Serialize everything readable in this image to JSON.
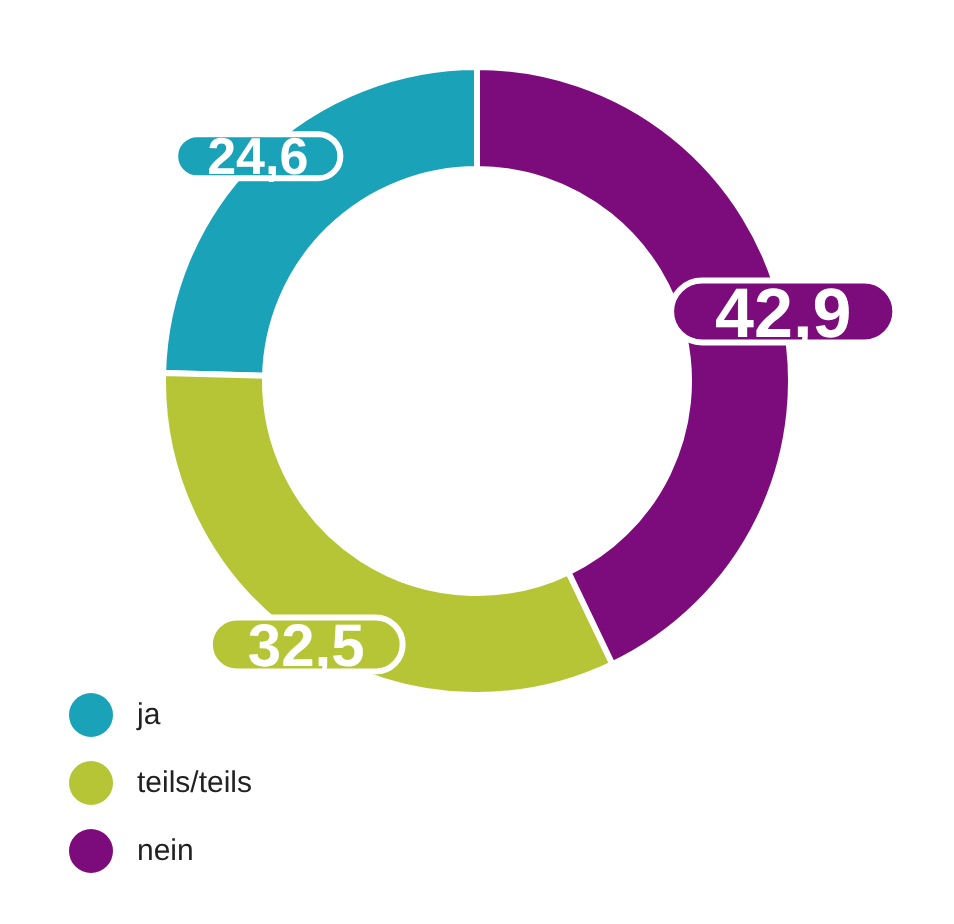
{
  "chart_data": {
    "type": "donut",
    "categories": [
      "ja",
      "teils/teils",
      "nein"
    ],
    "values": [
      24.6,
      32.5,
      42.9
    ],
    "colors": [
      "#1aa2b9",
      "#b6c535",
      "#7c0c7c"
    ],
    "value_labels": [
      "24,6",
      "32,5",
      "42,9"
    ],
    "legend": "bottom left"
  }
}
